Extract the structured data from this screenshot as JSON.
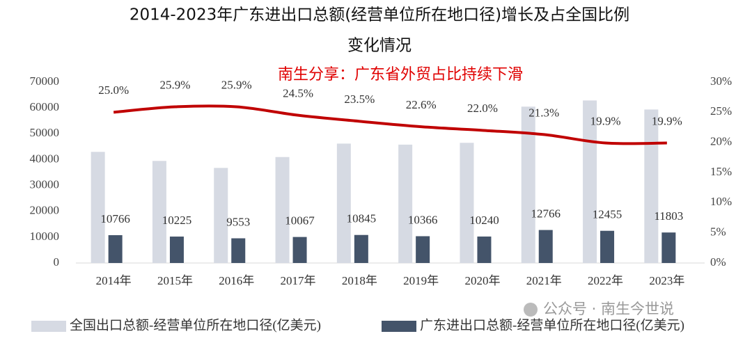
{
  "chart_data": {
    "type": "bar_line",
    "title": [
      "2014-2023年广东进出口总额(经营单位所在地口径)增长及占全国比例",
      "变化情况"
    ],
    "annotation": "南生分享：广东省外贸占比持续下滑",
    "watermark": "公众号 · 南生今世说",
    "categories": [
      "2014年",
      "2015年",
      "2016年",
      "2017年",
      "2018年",
      "2019年",
      "2020年",
      "2021年",
      "2022年",
      "2023年"
    ],
    "series": [
      {
        "name": "全国出口总额-经营单位所在地口径(亿美元)",
        "type": "bar",
        "color": "#d6dae3",
        "values": [
          43000,
          39500,
          36800,
          41000,
          46200,
          45800,
          46500,
          60500,
          62900,
          59400
        ]
      },
      {
        "name": "广东进出口总额-经营单位所在地口径(亿美元)",
        "type": "bar",
        "color": "#44546a",
        "values": [
          10766,
          10225,
          9553,
          10067,
          10845,
          10366,
          10240,
          12766,
          12455,
          11803
        ],
        "show_labels": true
      },
      {
        "type": "line",
        "axis": "y2",
        "color": "#c00000",
        "values": [
          25.0,
          25.9,
          25.9,
          24.5,
          23.5,
          22.6,
          22.0,
          21.3,
          19.9,
          19.9
        ],
        "value_labels": [
          "25.0%",
          "25.9%",
          "25.9%",
          "24.5%",
          "23.5%",
          "22.6%",
          "22.0%",
          "21.3%",
          "19.9%",
          "19.9%"
        ]
      }
    ],
    "ylim": [
      0,
      70000
    ],
    "yticks": [
      0,
      10000,
      20000,
      30000,
      40000,
      50000,
      60000,
      70000
    ],
    "y2lim": [
      0,
      30
    ],
    "y2ticks": [
      {
        "value": 0,
        "label": "0%"
      },
      {
        "value": 5,
        "label": "5%"
      },
      {
        "value": 10,
        "label": "10%"
      },
      {
        "value": 15,
        "label": "15%"
      },
      {
        "value": 20,
        "label": "20%"
      },
      {
        "value": 25,
        "label": "25%"
      },
      {
        "value": 30,
        "label": "30%"
      }
    ],
    "grid": false,
    "legend": "bottom"
  }
}
